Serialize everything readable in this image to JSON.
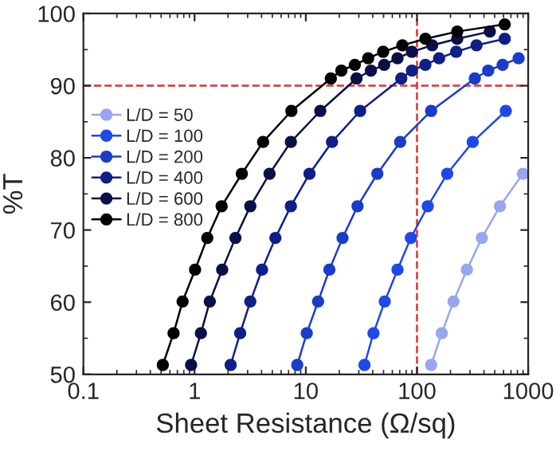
{
  "chart_data": {
    "type": "line",
    "xlabel": "Sheet Resistance (Ω/sq)",
    "ylabel": "%T",
    "log": "x",
    "marker": "circle",
    "line_style": "solid",
    "legend": "left",
    "grid": false,
    "xlim": [
      0.1,
      1000
    ],
    "xticks": [
      0.1,
      1,
      10,
      100,
      1000
    ],
    "ylim": [
      50,
      100
    ],
    "yticks": [
      50,
      60,
      70,
      80,
      90,
      100
    ],
    "ref_lines": [
      {
        "axis": "x",
        "value": 100,
        "color": "#e03030",
        "line_style": "dashed"
      },
      {
        "axis": "y",
        "value": 90,
        "color": "#e03030",
        "line_style": "dashed"
      }
    ],
    "series": [
      {
        "name": "L/D = 50",
        "color": "#98a6ee",
        "x": [
          134,
          167,
          213,
          281,
          383,
          557,
          896
        ],
        "values": [
          51.3,
          55.7,
          60.1,
          64.5,
          68.9,
          73.3,
          77.8
        ]
      },
      {
        "name": "L/D = 100",
        "color": "#1f48e6",
        "x": [
          33.7,
          40.6,
          51.3,
          66.8,
          88,
          125,
          187,
          317,
          629
        ],
        "values": [
          51.3,
          55.7,
          60.1,
          64.5,
          68.9,
          73.3,
          77.8,
          82.2,
          86.5
        ]
      },
      {
        "name": "L/D = 200",
        "color": "#1a3cc8",
        "x": [
          8.38,
          10.2,
          12.9,
          16.3,
          21.4,
          29.2,
          44,
          70.6,
          134,
          331,
          437,
          589,
          820
        ],
        "values": [
          51.3,
          55.7,
          60.1,
          64.5,
          68.9,
          73.3,
          77.8,
          82.2,
          86.5,
          91.0,
          92.1,
          92.9,
          93.8
        ]
      },
      {
        "name": "L/D = 400",
        "color": "#0e1f88",
        "x": [
          2.11,
          2.57,
          3.17,
          4.04,
          5.33,
          7.34,
          10.8,
          17.2,
          30.8,
          72.2,
          90,
          119,
          158,
          225,
          343,
          615
        ],
        "values": [
          51.3,
          55.7,
          60.1,
          64.5,
          68.9,
          73.3,
          77.8,
          82.2,
          86.5,
          91.0,
          92.1,
          92.9,
          93.8,
          94.7,
          95.6,
          96.5
        ]
      },
      {
        "name": "L/D = 600",
        "color": "#0a0f48",
        "x": [
          0.93,
          1.14,
          1.37,
          1.77,
          2.33,
          3.17,
          4.72,
          7.34,
          13.5,
          28.6,
          38.5,
          50.7,
          66.8,
          90,
          137,
          230,
          452
        ],
        "values": [
          51.3,
          55.7,
          60.1,
          64.5,
          68.9,
          73.3,
          77.8,
          82.2,
          86.5,
          91.0,
          92.1,
          92.9,
          93.8,
          94.7,
          95.6,
          96.5,
          97.5
        ]
      },
      {
        "name": "L/D = 800",
        "color": "#000000",
        "x": [
          0.518,
          0.647,
          0.78,
          1.01,
          1.3,
          1.75,
          2.66,
          4.13,
          7.42,
          16.8,
          20.9,
          27.6,
          36.4,
          49.6,
          73.8,
          119,
          230,
          615
        ],
        "values": [
          51.3,
          55.7,
          60.1,
          64.5,
          68.9,
          73.3,
          77.8,
          82.2,
          86.5,
          91.0,
          92.1,
          92.9,
          93.8,
          94.7,
          95.6,
          96.5,
          97.5,
          98.5
        ]
      }
    ]
  }
}
